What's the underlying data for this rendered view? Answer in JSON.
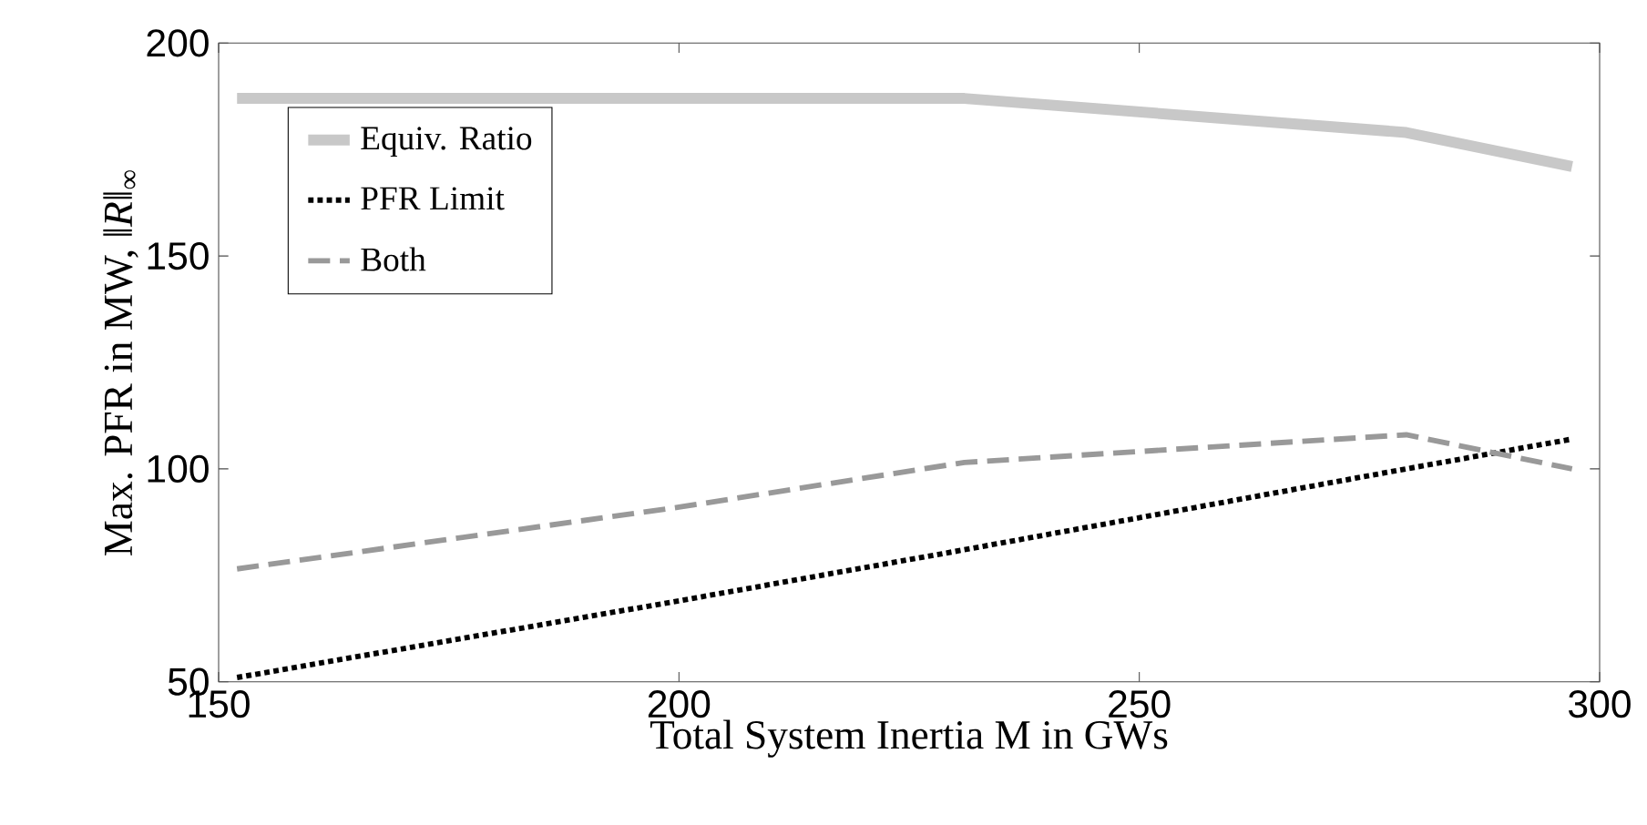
{
  "chart_data": {
    "type": "line",
    "xlabel": "Total System Inertia M in GWs",
    "ylabel": "Max. PFR in MW, ‖*R*‖$_{∞}$",
    "x": [
      152,
      200,
      231,
      279,
      297
    ],
    "series": [
      {
        "name": "Equiv. Ratio",
        "color": "#c8c8c8",
        "line_style": "solid",
        "values": [
          187,
          187,
          187,
          179,
          171
        ]
      },
      {
        "name": "PFR Limit",
        "color": "#000000",
        "line_style": "dotted",
        "values": [
          51,
          69,
          81,
          100,
          107
        ]
      },
      {
        "name": "Both",
        "color": "#999999",
        "line_style": "dashed",
        "values": [
          76.5,
          91,
          101.5,
          108,
          100
        ]
      }
    ],
    "xlim": [
      150,
      300
    ],
    "ylim": [
      50,
      200
    ],
    "xticks": [
      150,
      200,
      250,
      300
    ],
    "yticks": [
      50,
      100,
      150,
      200
    ],
    "grid": false,
    "legend": "top left",
    "marker": "none"
  }
}
